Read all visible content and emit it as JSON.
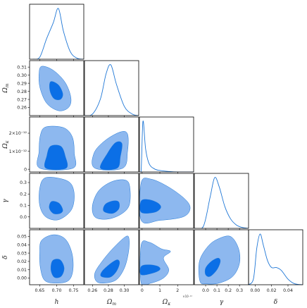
{
  "colors": {
    "outer": "#8db8ef",
    "inner": "#0b6fe6",
    "line": "#1f77d6",
    "frame": "#000000"
  },
  "parameters": [
    {
      "id": "h",
      "label": "h",
      "sub": "",
      "ticks": [
        "0.65",
        "0.70",
        "0.75"
      ],
      "tick_values": [
        0.65,
        0.7,
        0.75
      ],
      "range": [
        0.62,
        0.78
      ]
    },
    {
      "id": "om",
      "label": "Ω",
      "sub": "m",
      "ticks": [
        "0.26",
        "0.28",
        "0.30"
      ],
      "tick_values": [
        0.26,
        0.28,
        0.3
      ],
      "y_ticks": [
        "0.26",
        "0.27",
        "0.28",
        "0.29",
        "0.30",
        "0.31"
      ],
      "y_tick_values": [
        0.26,
        0.27,
        0.28,
        0.29,
        0.3,
        0.31
      ],
      "range": [
        0.25,
        0.318
      ]
    },
    {
      "id": "ok",
      "label": "Ω",
      "sub": "κ",
      "ticks": [
        "0",
        "1",
        "2"
      ],
      "tick_values": [
        0,
        1,
        2
      ],
      "y_ticks": [
        "0",
        "1×10⁻¹²",
        "2×10⁻¹²"
      ],
      "y_tick_values": [
        0,
        1,
        2
      ],
      "exponent": "×10⁻¹²",
      "range": [
        -0.15,
        2.9
      ]
    },
    {
      "id": "g",
      "label": "γ",
      "sub": "",
      "ticks": [
        "0.0",
        "0.1",
        "0.2",
        "0.3"
      ],
      "tick_values": [
        0.0,
        0.1,
        0.2,
        0.3
      ],
      "y_ticks": [
        "0.0",
        "0.1",
        "0.2",
        "0.3"
      ],
      "y_tick_values": [
        0.0,
        0.1,
        0.2,
        0.3
      ],
      "range": [
        -0.1,
        0.38
      ]
    },
    {
      "id": "d",
      "label": "δ",
      "sub": "",
      "ticks": [
        "0.00",
        "0.02",
        "0.04"
      ],
      "tick_values": [
        0.0,
        0.02,
        0.04
      ],
      "y_ticks": [
        "0.00",
        "0.01",
        "0.02",
        "0.03",
        "0.04",
        "0.05"
      ],
      "y_tick_values": [
        0.0,
        0.01,
        0.02,
        0.03,
        0.04,
        0.05
      ],
      "range": [
        -0.008,
        0.058
      ]
    }
  ],
  "chart_data": {
    "type": "corner",
    "marginals": [
      {
        "param": "h",
        "x": [
          0.63,
          0.65,
          0.67,
          0.69,
          0.705,
          0.72,
          0.74,
          0.76,
          0.78
        ],
        "density": [
          0.0,
          0.04,
          0.4,
          0.72,
          1.0,
          0.55,
          0.15,
          0.02,
          0.0
        ]
      },
      {
        "param": "om",
        "x": [
          0.25,
          0.26,
          0.27,
          0.277,
          0.283,
          0.29,
          0.3,
          0.31,
          0.318
        ],
        "density": [
          0.0,
          0.03,
          0.33,
          0.82,
          1.0,
          0.62,
          0.18,
          0.03,
          0.0
        ]
      },
      {
        "param": "ok",
        "x": [
          -0.15,
          -0.05,
          0.05,
          0.2,
          0.4,
          0.7,
          1.0,
          1.5,
          2.0,
          2.9
        ],
        "density": [
          0.0,
          0.05,
          1.0,
          0.45,
          0.16,
          0.06,
          0.03,
          0.01,
          0.0,
          0.0
        ]
      },
      {
        "param": "g",
        "x": [
          -0.1,
          -0.02,
          0.04,
          0.08,
          0.12,
          0.17,
          0.22,
          0.27,
          0.32,
          0.38
        ],
        "density": [
          0.0,
          0.04,
          0.62,
          1.0,
          0.82,
          0.43,
          0.19,
          0.07,
          0.02,
          0.0
        ]
      },
      {
        "param": "d",
        "x": [
          -0.008,
          -0.002,
          0.002,
          0.006,
          0.01,
          0.015,
          0.02,
          0.026,
          0.032,
          0.04,
          0.048,
          0.058
        ],
        "density": [
          0.0,
          0.12,
          0.72,
          1.0,
          0.78,
          0.48,
          0.34,
          0.34,
          0.28,
          0.11,
          0.02,
          0.0
        ]
      }
    ],
    "contours": [
      {
        "x": "h",
        "y": "om",
        "outer": [
          [
            0.656,
            0.311
          ],
          [
            0.69,
            0.306
          ],
          [
            0.725,
            0.291
          ],
          [
            0.742,
            0.272
          ],
          [
            0.735,
            0.26
          ],
          [
            0.706,
            0.256
          ],
          [
            0.671,
            0.265
          ],
          [
            0.651,
            0.284
          ],
          [
            0.648,
            0.302
          ]
        ],
        "inner": [
          [
            0.682,
            0.292
          ],
          [
            0.705,
            0.288
          ],
          [
            0.718,
            0.277
          ],
          [
            0.711,
            0.27
          ],
          [
            0.692,
            0.271
          ],
          [
            0.68,
            0.281
          ]
        ]
      },
      {
        "x": "h",
        "y": "ok",
        "outer": [
          [
            0.668,
            2.35
          ],
          [
            0.72,
            2.31
          ],
          [
            0.746,
            1.8
          ],
          [
            0.752,
            0.9
          ],
          [
            0.748,
            0.06
          ],
          [
            0.65,
            0.06
          ],
          [
            0.648,
            1.0
          ],
          [
            0.652,
            1.9
          ]
        ],
        "inner": [
          [
            0.682,
            1.28
          ],
          [
            0.712,
            1.28
          ],
          [
            0.725,
            0.75
          ],
          [
            0.728,
            0.06
          ],
          [
            0.668,
            0.06
          ],
          [
            0.671,
            0.75
          ]
        ]
      },
      {
        "x": "om",
        "y": "ok",
        "outer": [
          [
            0.263,
            0.06
          ],
          [
            0.262,
            0.9
          ],
          [
            0.276,
            1.6
          ],
          [
            0.295,
            2.07
          ],
          [
            0.304,
            1.95
          ],
          [
            0.304,
            1.0
          ],
          [
            0.298,
            0.06
          ]
        ],
        "inner": [
          [
            0.27,
            0.06
          ],
          [
            0.279,
            0.9
          ],
          [
            0.289,
            1.48
          ],
          [
            0.297,
            1.43
          ],
          [
            0.295,
            0.7
          ],
          [
            0.291,
            0.06
          ]
        ]
      },
      {
        "x": "h",
        "y": "g",
        "outer": [
          [
            0.665,
            0.34
          ],
          [
            0.71,
            0.335
          ],
          [
            0.742,
            0.29
          ],
          [
            0.752,
            0.18
          ],
          [
            0.742,
            0.055
          ],
          [
            0.705,
            -0.025
          ],
          [
            0.668,
            0.0
          ],
          [
            0.65,
            0.1
          ],
          [
            0.65,
            0.25
          ]
        ],
        "inner": [
          [
            0.685,
            0.135
          ],
          [
            0.707,
            0.12
          ],
          [
            0.718,
            0.06
          ],
          [
            0.71,
            0.03
          ],
          [
            0.69,
            0.03
          ],
          [
            0.678,
            0.08
          ]
        ]
      },
      {
        "x": "om",
        "y": "g",
        "outer": [
          [
            0.263,
            0.0
          ],
          [
            0.26,
            0.1
          ],
          [
            0.268,
            0.23
          ],
          [
            0.285,
            0.31
          ],
          [
            0.302,
            0.32
          ],
          [
            0.307,
            0.25
          ],
          [
            0.306,
            0.1
          ],
          [
            0.295,
            0.02
          ],
          [
            0.278,
            -0.02
          ]
        ],
        "inner": [
          [
            0.274,
            0.05
          ],
          [
            0.276,
            0.11
          ],
          [
            0.286,
            0.14
          ],
          [
            0.293,
            0.13
          ],
          [
            0.293,
            0.07
          ],
          [
            0.285,
            0.03
          ]
        ]
      },
      {
        "x": "ok",
        "y": "g",
        "outer": [
          [
            -0.05,
            -0.03
          ],
          [
            -0.05,
            0.3
          ],
          [
            0.5,
            0.33
          ],
          [
            1.5,
            0.26
          ],
          [
            2.45,
            0.15
          ],
          [
            2.7,
            0.07
          ],
          [
            2.3,
            0.0
          ],
          [
            1.0,
            -0.03
          ]
        ],
        "inner": [
          [
            -0.05,
            0.04
          ],
          [
            -0.05,
            0.14
          ],
          [
            0.4,
            0.15
          ],
          [
            0.9,
            0.12
          ],
          [
            1.05,
            0.08
          ],
          [
            0.7,
            0.04
          ]
        ]
      },
      {
        "x": "h",
        "y": "d",
        "outer": [
          [
            0.655,
            0.045
          ],
          [
            0.69,
            0.052
          ],
          [
            0.725,
            0.047
          ],
          [
            0.745,
            0.03
          ],
          [
            0.748,
            0.01
          ],
          [
            0.735,
            -0.003
          ],
          [
            0.7,
            -0.006
          ],
          [
            0.665,
            -0.003
          ],
          [
            0.652,
            0.012
          ],
          [
            0.65,
            0.03
          ]
        ],
        "inner": [
          [
            0.688,
            0.021
          ],
          [
            0.71,
            0.022
          ],
          [
            0.722,
            0.012
          ],
          [
            0.713,
            0.002
          ],
          [
            0.693,
            0.001
          ],
          [
            0.683,
            0.01
          ]
        ]
      },
      {
        "x": "om",
        "y": "d",
        "outer": [
          [
            0.265,
            -0.004
          ],
          [
            0.263,
            0.006
          ],
          [
            0.272,
            0.02
          ],
          [
            0.286,
            0.036
          ],
          [
            0.302,
            0.05
          ],
          [
            0.306,
            0.046
          ],
          [
            0.305,
            0.03
          ],
          [
            0.3,
            0.012
          ],
          [
            0.29,
            -0.002
          ],
          [
            0.275,
            -0.006
          ]
        ],
        "inner": [
          [
            0.271,
            0.002
          ],
          [
            0.272,
            0.008
          ],
          [
            0.282,
            0.017
          ],
          [
            0.291,
            0.022
          ],
          [
            0.294,
            0.018
          ],
          [
            0.29,
            0.008
          ],
          [
            0.282,
            0.001
          ]
        ]
      },
      {
        "x": "ok",
        "y": "d",
        "outer": [
          [
            -0.05,
            -0.006
          ],
          [
            -0.05,
            0.04
          ],
          [
            0.4,
            0.043
          ],
          [
            1.1,
            0.035
          ],
          [
            1.6,
            0.032
          ],
          [
            1.2,
            0.024
          ],
          [
            1.5,
            0.01
          ],
          [
            1.2,
            0.0
          ],
          [
            0.5,
            -0.006
          ]
        ],
        "inner": [
          [
            -0.05,
            0.004
          ],
          [
            -0.05,
            0.014
          ],
          [
            0.4,
            0.016
          ],
          [
            0.9,
            0.014
          ],
          [
            1.0,
            0.01
          ],
          [
            0.6,
            0.006
          ]
        ]
      },
      {
        "x": "g",
        "y": "d",
        "outer": [
          [
            -0.05,
            -0.004
          ],
          [
            -0.055,
            0.02
          ],
          [
            0.02,
            0.038
          ],
          [
            0.11,
            0.047
          ],
          [
            0.22,
            0.05
          ],
          [
            0.29,
            0.036
          ],
          [
            0.3,
            0.018
          ],
          [
            0.24,
            0.002
          ],
          [
            0.12,
            -0.006
          ],
          [
            0.01,
            -0.007
          ]
        ],
        "inner": [
          [
            0.0,
            0.004
          ],
          [
            0.0,
            0.012
          ],
          [
            0.05,
            0.02
          ],
          [
            0.11,
            0.024
          ],
          [
            0.13,
            0.02
          ],
          [
            0.1,
            0.01
          ],
          [
            0.04,
            0.002
          ]
        ]
      }
    ]
  }
}
